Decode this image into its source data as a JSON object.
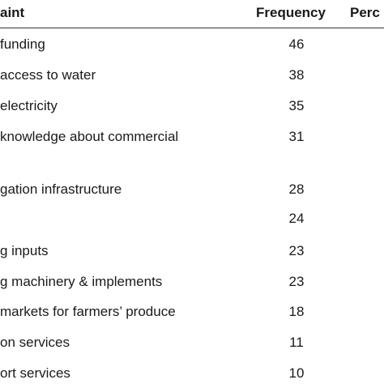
{
  "table": {
    "header": [
      "aint",
      "Frequency",
      "Perc"
    ],
    "rows": [
      [
        "funding",
        "46"
      ],
      [
        "access to water",
        "38"
      ],
      [
        "electricity",
        "35"
      ],
      [
        "knowledge about commercial",
        "31"
      ],
      [
        "gation infrastructure",
        "28"
      ],
      [
        null,
        "24"
      ],
      [
        "g inputs",
        "23"
      ],
      [
        "g machinery & implements",
        "23"
      ],
      [
        "markets for farmers’ produce",
        "18"
      ],
      [
        "on services",
        "11"
      ],
      [
        "ort services",
        "10"
      ]
    ]
  }
}
